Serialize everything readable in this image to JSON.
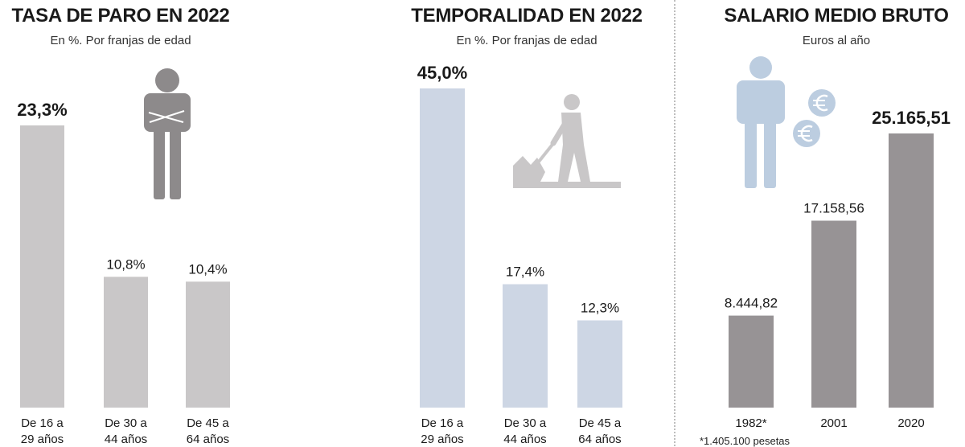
{
  "chart_data": [
    {
      "type": "bar",
      "title": "TASA DE PARO EN 2022",
      "subtitle": "En %. Por franjas de edad",
      "categories": [
        "De 16 a 29 años",
        "De 30 a 44 años",
        "De 45 a 64 años"
      ],
      "category_lines": [
        [
          "De 16 a",
          "29 años"
        ],
        [
          "De 30 a",
          "44 años"
        ],
        [
          "De 45 a",
          "64 años"
        ]
      ],
      "values": [
        23.3,
        10.8,
        10.4
      ],
      "labels": [
        "23,3%",
        "10,8%",
        "10,4%"
      ],
      "ylim": [
        0,
        23.3
      ],
      "bar_color": "#c9c7c8",
      "highlight_first": true,
      "icon": "person-crossed-arms-icon",
      "icon_color": "#8d8a8b"
    },
    {
      "type": "bar",
      "title": "TEMPORALIDAD EN 2022",
      "subtitle": "En %. Por franjas de edad",
      "categories": [
        "De 16 a 29 años",
        "De 30 a 44 años",
        "De 45 a 64 años"
      ],
      "category_lines": [
        [
          "De 16 a",
          "29 años"
        ],
        [
          "De 30 a",
          "44 años"
        ],
        [
          "De 45 a",
          "64 años"
        ]
      ],
      "values": [
        45.0,
        17.4,
        12.3
      ],
      "labels": [
        "45,0%",
        "17,4%",
        "12,3%"
      ],
      "ylim": [
        0,
        45.0
      ],
      "bar_color": "#cdd6e4",
      "highlight_first": true,
      "icon": "worker-shoveling-icon",
      "icon_color": "#c9c7c8"
    },
    {
      "type": "bar",
      "title": "SALARIO MEDIO BRUTO",
      "subtitle": "Euros al año",
      "categories": [
        "1982*",
        "2001",
        "2020"
      ],
      "category_lines": [
        [
          "1982*"
        ],
        [
          "2001"
        ],
        [
          "2020"
        ]
      ],
      "values": [
        8444.82,
        17158.56,
        25165.51
      ],
      "labels": [
        "8.444,82",
        "17.158,56",
        "25.165,51"
      ],
      "ylim": [
        0,
        25165.51
      ],
      "bar_color": "#979395",
      "highlight_last": true,
      "icon": "person-euro-icon",
      "icon_color": "#bccde0",
      "footnote": "*1.405.100 pesetas"
    }
  ]
}
